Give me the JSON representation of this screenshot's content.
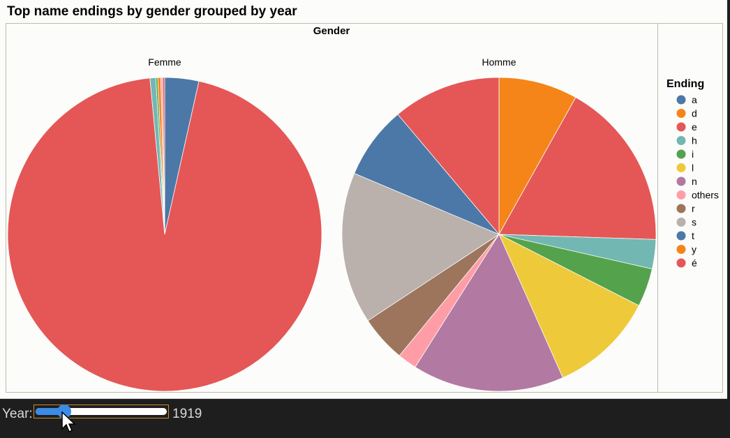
{
  "chart_data": {
    "type": "pie",
    "title": "Top name endings by gender grouped by year",
    "facet_header": "Gender",
    "legend_title": "Ending",
    "legend": [
      {
        "label": "a",
        "color": "#4c78a8"
      },
      {
        "label": "d",
        "color": "#f58518"
      },
      {
        "label": "e",
        "color": "#e45756"
      },
      {
        "label": "h",
        "color": "#72b7b2"
      },
      {
        "label": "i",
        "color": "#54a24b"
      },
      {
        "label": "l",
        "color": "#eeca3b"
      },
      {
        "label": "n",
        "color": "#b279a2"
      },
      {
        "label": "others",
        "color": "#ff9da6"
      },
      {
        "label": "r",
        "color": "#9d755d"
      },
      {
        "label": "s",
        "color": "#bab0ac"
      },
      {
        "label": "t",
        "color": "#4c78a8"
      },
      {
        "label": "y",
        "color": "#f58518"
      },
      {
        "label": "é",
        "color": "#e45756"
      }
    ],
    "legend_placement": "right",
    "pies": [
      {
        "name": "Femme",
        "slices": [
          {
            "ending": "a",
            "value": 3.5
          },
          {
            "ending": "e",
            "value": 95.0
          },
          {
            "ending": "h",
            "value": 0.6
          },
          {
            "ending": "i",
            "value": 0.2
          },
          {
            "ending": "y",
            "value": 0.3
          },
          {
            "ending": "others",
            "value": 0.2
          },
          {
            "ending": "é",
            "value": 0.2
          }
        ]
      },
      {
        "name": "Homme",
        "slices": [
          {
            "ending": "d",
            "value": 7.8
          },
          {
            "ending": "e",
            "value": 16.7
          },
          {
            "ending": "h",
            "value": 2.9
          },
          {
            "ending": "i",
            "value": 3.8
          },
          {
            "ending": "l",
            "value": 10.4
          },
          {
            "ending": "n",
            "value": 15.0
          },
          {
            "ending": "others",
            "value": 1.9
          },
          {
            "ending": "r",
            "value": 4.6
          },
          {
            "ending": "s",
            "value": 15.0
          },
          {
            "ending": "t",
            "value": 7.2
          },
          {
            "ending": "é",
            "value": 10.7
          }
        ]
      }
    ]
  },
  "controls": {
    "year_label": "Year:",
    "year_value": "1919",
    "year_fraction": 0.22
  }
}
